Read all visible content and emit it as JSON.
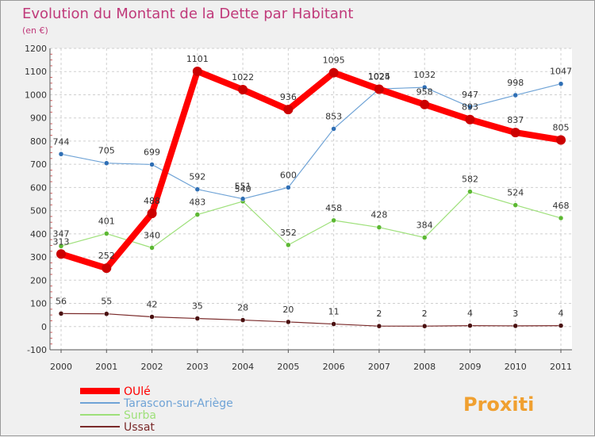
{
  "chart_data": {
    "type": "line",
    "title": "Evolution du Montant de la Dette par Habitant",
    "subtitle": "(en €)",
    "x": [
      "2000",
      "2001",
      "2002",
      "2003",
      "2004",
      "2005",
      "2006",
      "2007",
      "2008",
      "2009",
      "2010",
      "2011"
    ],
    "yticks": [
      "-100",
      "0",
      "100",
      "200",
      "300",
      "400",
      "500",
      "600",
      "700",
      "800",
      "900",
      "1000",
      "1100",
      "1200"
    ],
    "ylim": [
      -100,
      1200
    ],
    "grid": true,
    "legend_position": "bottom-left",
    "series": [
      {
        "name": "OUlé",
        "color": "#ff0000",
        "values": [
          313,
          252,
          488,
          1101,
          1022,
          936,
          1095,
          1024,
          958,
          893,
          837,
          805
        ]
      },
      {
        "name": "Tarascon-sur-Ariège",
        "color": "#6fa3d6",
        "values": [
          744,
          705,
          699,
          592,
          551,
          600,
          853,
          1025,
          1032,
          947,
          998,
          1047
        ]
      },
      {
        "name": "Surba",
        "color": "#9ee07a",
        "values": [
          347,
          401,
          340,
          483,
          540,
          352,
          458,
          428,
          384,
          582,
          524,
          468
        ]
      },
      {
        "name": "Ussat",
        "color": "#7a2a2a",
        "values": [
          56,
          55,
          42,
          35,
          28,
          20,
          11,
          2,
          2,
          4,
          3,
          4
        ]
      }
    ]
  },
  "logo": {
    "text": "Proxiti"
  }
}
